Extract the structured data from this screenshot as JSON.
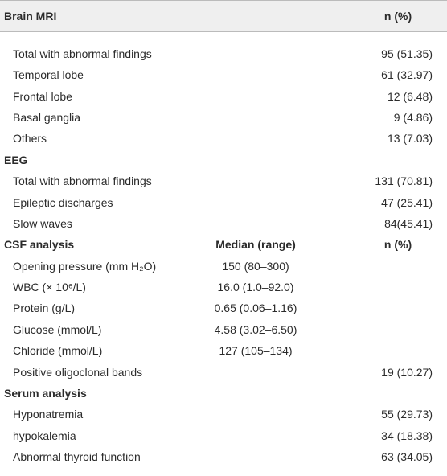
{
  "table": {
    "header": {
      "title": "Brain MRI",
      "n": "n (%)"
    },
    "sections": [
      {
        "rows": [
          {
            "label": "Total with abnormal findings",
            "n": "95 (51.35)"
          },
          {
            "label": "Temporal lobe",
            "n": "61 (32.97)"
          },
          {
            "label": "Frontal lobe",
            "n": "12 (6.48)"
          },
          {
            "label": "Basal ganglia",
            "n": "9 (4.86)"
          },
          {
            "label": "Others",
            "n": "13 (7.03)"
          }
        ]
      },
      {
        "title": "EEG",
        "rows": [
          {
            "label": "Total with abnormal findings",
            "n": "131 (70.81)"
          },
          {
            "label": "Epileptic discharges",
            "n": "47 (25.41)"
          },
          {
            "label": "Slow waves",
            "n": "84(45.41)"
          }
        ]
      },
      {
        "title": "CSF analysis",
        "median_header": "Median (range)",
        "n_header": "n (%)",
        "rows": [
          {
            "label": "Opening pressure (mm H₂O)",
            "median": "150 (80–300)"
          },
          {
            "label": "WBC (× 10⁶/L)",
            "median": "16.0 (1.0–92.0)"
          },
          {
            "label": "Protein (g/L)",
            "median": "0.65 (0.06–1.16)"
          },
          {
            "label": "Glucose (mmol/L)",
            "median": "4.58 (3.02–6.50)"
          },
          {
            "label": "Chloride (mmol/L)",
            "median": "127 (105–134)"
          },
          {
            "label": "Positive oligoclonal bands",
            "n": "19 (10.27)"
          }
        ]
      },
      {
        "title": "Serum analysis",
        "rows": [
          {
            "label": "Hyponatremia",
            "n": "55 (29.73)"
          },
          {
            "label": "hypokalemia",
            "n": "34 (18.38)"
          },
          {
            "label": "Abnormal thyroid function",
            "n": "63 (34.05)"
          }
        ]
      }
    ]
  }
}
